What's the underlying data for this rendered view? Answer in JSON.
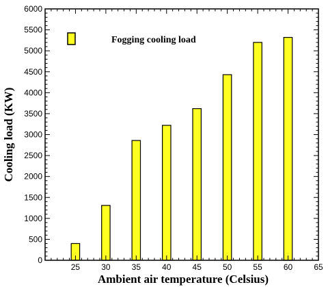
{
  "chart_data": {
    "type": "bar",
    "title": "",
    "xlabel": "Ambient air temperature (Celsius)",
    "ylabel": "Cooling load (KW)",
    "categories": [
      25,
      30,
      35,
      40,
      45,
      50,
      55,
      60
    ],
    "series": [
      {
        "name": "Fogging cooling load",
        "values": [
          400,
          1310,
          2860,
          3220,
          3620,
          4430,
          5200,
          5320
        ]
      }
    ],
    "xlim": [
      20,
      65
    ],
    "ylim": [
      0,
      6000
    ],
    "xticks": [
      25,
      30,
      35,
      40,
      45,
      50,
      55,
      60,
      65
    ],
    "yticks": [
      0,
      500,
      1000,
      1500,
      2000,
      2500,
      3000,
      3500,
      4000,
      4500,
      5000,
      5500,
      6000
    ],
    "bar_width": 1.4,
    "bar_color": "#ffff22",
    "grid": false,
    "legend_position": "top-left"
  }
}
